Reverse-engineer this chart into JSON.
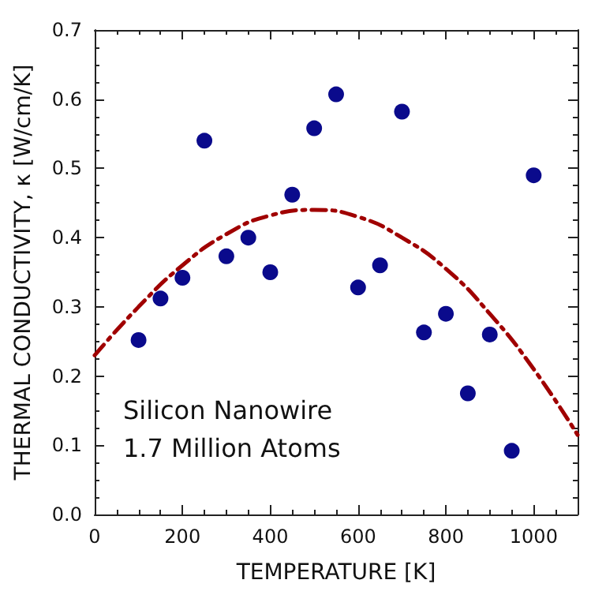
{
  "chart_data": {
    "type": "scatter",
    "xlabel": "TEMPERATURE [K]",
    "ylabel": "THERMAL CONDUCTIVITY, κ [W/cm/K]",
    "annotations": [
      "Silicon Nanowire",
      "1.7 Million Atoms"
    ],
    "series": [
      {
        "color": "#0a0a8c",
        "marker": "circle",
        "x": [
          100,
          150,
          200,
          250,
          300,
          350,
          400,
          450,
          500,
          550,
          600,
          650,
          700,
          750,
          800,
          850,
          900,
          950,
          1000
        ],
        "values": [
          0.252,
          0.312,
          0.342,
          0.54,
          0.373,
          0.4,
          0.35,
          0.462,
          0.558,
          0.607,
          0.328,
          0.36,
          0.582,
          0.263,
          0.29,
          0.175,
          0.26,
          0.092,
          0.49
        ]
      },
      {
        "type": "line",
        "color": "#a00000",
        "line_style": "dashed",
        "x": [
          0,
          100,
          200,
          300,
          400,
          500,
          600,
          700,
          800,
          900,
          1000,
          1100
        ],
        "values": [
          0.23,
          0.3,
          0.36,
          0.405,
          0.432,
          0.44,
          0.43,
          0.4,
          0.355,
          0.29,
          0.21,
          0.115
        ]
      }
    ],
    "xlim": [
      0,
      1100
    ],
    "xticks": [
      0,
      200,
      400,
      600,
      800,
      1000
    ],
    "ylim": [
      0,
      0.7
    ],
    "yticks": [
      {
        "value": 0,
        "label": "0.0"
      },
      0.1,
      0.2,
      0.3,
      0.4,
      0.5,
      0.6,
      0.7
    ],
    "grid": false
  }
}
